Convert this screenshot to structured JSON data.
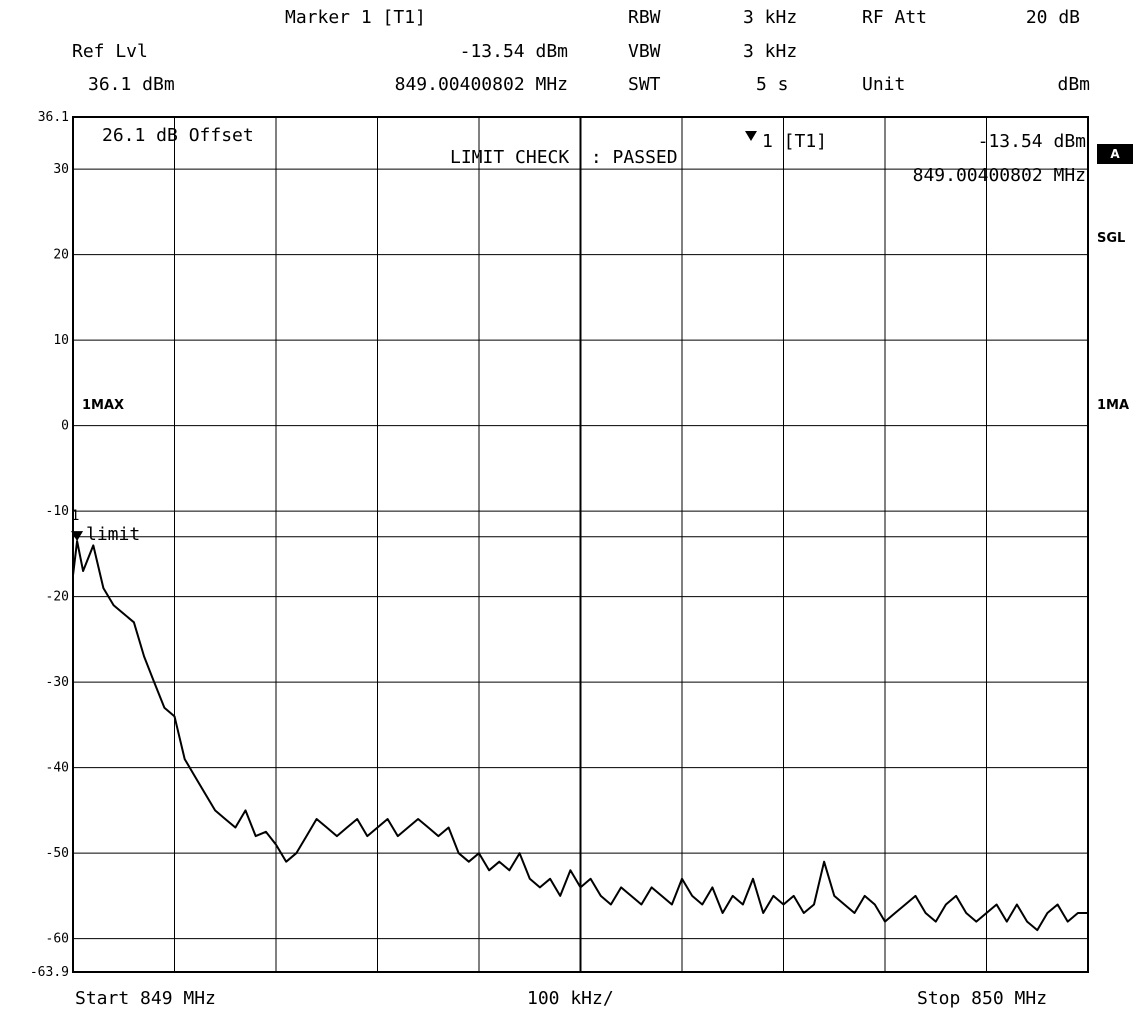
{
  "header": {
    "marker_label": "Marker 1 [T1]",
    "ref_lvl_label": "Ref Lvl",
    "ref_lvl_value": "36.1 dBm",
    "marker_level": "-13.54 dBm",
    "marker_freq": "849.00400802 MHz",
    "rbw_label": "RBW",
    "rbw_value": "3 kHz",
    "vbw_label": "VBW",
    "vbw_value": "3 kHz",
    "swt_label": "SWT",
    "swt_value": "5 s",
    "rf_att_label": "RF Att",
    "rf_att_value": "20 dB",
    "unit_label": "Unit",
    "unit_value": "dBm"
  },
  "plot_annotations": {
    "offset": "26.1 dB Offset",
    "limit_check": "LIMIT CHECK  : PASSED",
    "marker_tag": "1 [T1]",
    "marker_level": "-13.54 dBm",
    "marker_freq": "849.00400802 MHz",
    "trace_label": "1MAX",
    "limit_label": "limit",
    "marker_number": "1"
  },
  "side_labels": {
    "badge": "A",
    "sgl": "SGL",
    "trace": "1MA"
  },
  "footer": {
    "start": "Start 849 MHz",
    "span": "100 kHz/",
    "stop": "Stop 850 MHz"
  },
  "chart_data": {
    "type": "line",
    "xlabel": "",
    "ylabel": "",
    "x_range_mhz": [
      849.0,
      850.0
    ],
    "ylim": [
      -63.9,
      36.1
    ],
    "y_ticks": [
      "36.1",
      "30",
      "20",
      "10",
      "0",
      "-10",
      "-20",
      "-30",
      "-40",
      "-50",
      "-60",
      "-63.9"
    ],
    "limit_line_dbm": -13,
    "grid": true,
    "series": [
      {
        "x": [
          849.0,
          849.004,
          849.01,
          849.02,
          849.03,
          849.04,
          849.05,
          849.06,
          849.07,
          849.08,
          849.09,
          849.1,
          849.11,
          849.12,
          849.13,
          849.14,
          849.15,
          849.16,
          849.17,
          849.18,
          849.19,
          849.2,
          849.21,
          849.22,
          849.23,
          849.24,
          849.25,
          849.26,
          849.27,
          849.28,
          849.29,
          849.3,
          849.31,
          849.32,
          849.33,
          849.34,
          849.35,
          849.36,
          849.37,
          849.38,
          849.39,
          849.4,
          849.41,
          849.42,
          849.43,
          849.44,
          849.45,
          849.46,
          849.47,
          849.48,
          849.49,
          849.5,
          849.51,
          849.52,
          849.53,
          849.54,
          849.55,
          849.56,
          849.57,
          849.58,
          849.59,
          849.6,
          849.61,
          849.62,
          849.63,
          849.64,
          849.65,
          849.66,
          849.67,
          849.68,
          849.69,
          849.7,
          849.71,
          849.72,
          849.73,
          849.74,
          849.75,
          849.76,
          849.77,
          849.78,
          849.79,
          849.8,
          849.81,
          849.82,
          849.83,
          849.84,
          849.85,
          849.86,
          849.87,
          849.88,
          849.89,
          849.9,
          849.91,
          849.92,
          849.93,
          849.94,
          849.95,
          849.96,
          849.97,
          849.98,
          849.99,
          850.0
        ],
        "y": [
          -17.5,
          -13.5,
          -17,
          -14,
          -19,
          -21,
          -22,
          -23,
          -27,
          -30,
          -33,
          -34,
          -39,
          -41,
          -43,
          -45,
          -46,
          -47,
          -45,
          -48,
          -47.5,
          -49,
          -51,
          -50,
          -48,
          -46,
          -47,
          -48,
          -47,
          -46,
          -48,
          -47,
          -46,
          -48,
          -47,
          -46,
          -47,
          -48,
          -47,
          -50,
          -51,
          -50,
          -52,
          -51,
          -52,
          -50,
          -53,
          -54,
          -53,
          -55,
          -52,
          -54,
          -53,
          -55,
          -56,
          -54,
          -55,
          -56,
          -54,
          -55,
          -56,
          -53,
          -55,
          -56,
          -54,
          -57,
          -55,
          -56,
          -53,
          -57,
          -55,
          -56,
          -55,
          -57,
          -56,
          -51,
          -55,
          -56,
          -57,
          -55,
          -56,
          -58,
          -57,
          -56,
          -55,
          -57,
          -58,
          -56,
          -55,
          -57,
          -58,
          -57,
          -56,
          -58,
          -56,
          -58,
          -59,
          -57,
          -56,
          -58,
          -57,
          -57
        ]
      }
    ]
  }
}
